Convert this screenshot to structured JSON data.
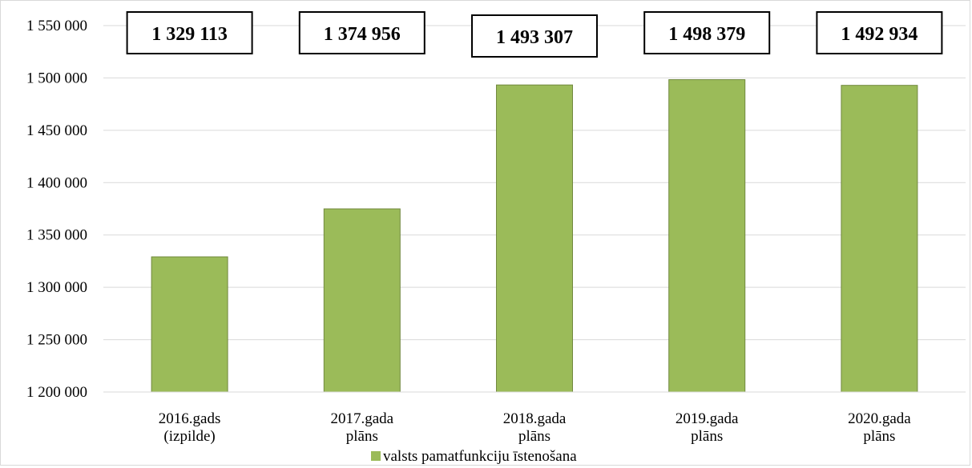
{
  "chart_data": {
    "type": "bar",
    "categories": [
      [
        "2016.gads",
        "(izpilde)"
      ],
      [
        "2017.gada",
        "plāns"
      ],
      [
        "2018.gada",
        "plāns"
      ],
      [
        "2019.gada",
        "plāns"
      ],
      [
        "2020.gada",
        "plāns"
      ]
    ],
    "series": [
      {
        "name": "valsts pamatfunkciju īstenošana",
        "values": [
          1329113,
          1374956,
          1493307,
          1498379,
          1492934
        ],
        "color": "#9bbb59",
        "border_color": "#71893f"
      }
    ],
    "data_labels": [
      "1 329 113",
      "1 374 956",
      "1 493 307",
      "1 498 379",
      "1 492 934"
    ],
    "y_ticks": [
      "1 200 000",
      "1 250 000",
      "1 300 000",
      "1 350 000",
      "1 400 000",
      "1 450 000",
      "1 500 000",
      "1 550 000"
    ],
    "ylim": [
      1200000,
      1550000
    ],
    "y_step": 50000,
    "grid": true,
    "legend": "bottom",
    "title": "",
    "xlabel": "",
    "ylabel": ""
  }
}
